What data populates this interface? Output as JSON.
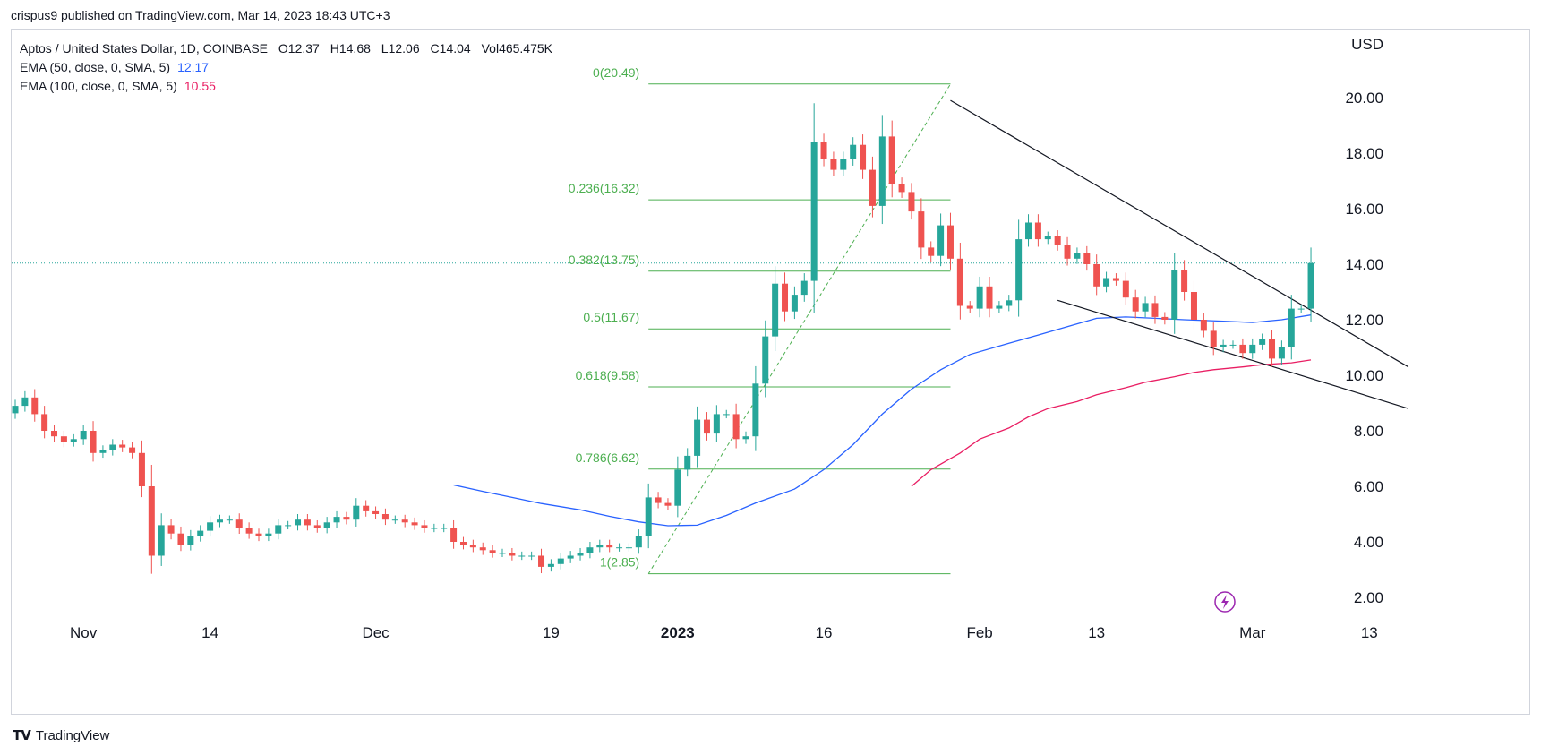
{
  "header": {
    "published": "crispus9 published on TradingView.com, Mar 14, 2023 18:43 UTC+3"
  },
  "legend": {
    "symbol": "Aptos / United States Dollar, 1D, COINBASE",
    "ohlc": [
      {
        "label": "O",
        "value": "12.37"
      },
      {
        "label": "H",
        "value": "14.68"
      },
      {
        "label": "L",
        "value": "12.06"
      },
      {
        "label": "C",
        "value": "14.04"
      },
      {
        "label": "Vol",
        "value": "465.475K"
      }
    ],
    "ema50": {
      "label": "EMA (50, close, 0, SMA, 5)",
      "value": "12.17"
    },
    "ema100": {
      "label": "EMA (100, close, 0, SMA, 5)",
      "value": "10.55"
    }
  },
  "footer": {
    "brand": "TradingView"
  },
  "colors": {
    "up": "#26a69a",
    "down": "#ef5350",
    "ema50": "#2962ff",
    "ema100": "#e91e63",
    "fib": "#4caf50",
    "trend": "#131722",
    "accent": "#9c27b0"
  },
  "chart_data": {
    "type": "candlestick",
    "title": "Aptos / United States Dollar, 1D, COINBASE",
    "y_axis": {
      "unit": "USD",
      "ylim": [
        1.0,
        22.0
      ],
      "ticks": [
        "2.00",
        "4.00",
        "6.00",
        "8.00",
        "10.00",
        "12.00",
        "14.00",
        "16.00",
        "18.00",
        "20.00"
      ],
      "side": "right"
    },
    "x_axis": {
      "tick_labels": [
        {
          "label": "Nov",
          "date": "2022-11-01"
        },
        {
          "label": "14",
          "date": "2022-11-14"
        },
        {
          "label": "Dec",
          "date": "2022-12-01"
        },
        {
          "label": "19",
          "date": "2022-12-19"
        },
        {
          "label": "2023",
          "date": "2023-01-01"
        },
        {
          "label": "16",
          "date": "2023-01-16"
        },
        {
          "label": "Feb",
          "date": "2023-02-01"
        },
        {
          "label": "13",
          "date": "2023-02-13"
        },
        {
          "label": "Mar",
          "date": "2023-03-01"
        },
        {
          "label": "13",
          "date": "2023-03-13"
        }
      ]
    },
    "first_date": "2022-10-25",
    "closes": [
      8.9,
      9.2,
      8.6,
      8.0,
      7.8,
      7.6,
      7.7,
      8.0,
      7.2,
      7.3,
      7.5,
      7.4,
      7.2,
      6.0,
      3.5,
      4.6,
      4.3,
      3.9,
      4.2,
      4.4,
      4.7,
      4.8,
      4.8,
      4.5,
      4.3,
      4.2,
      4.3,
      4.6,
      4.6,
      4.8,
      4.6,
      4.5,
      4.7,
      4.9,
      4.8,
      5.3,
      5.1,
      5.0,
      4.8,
      4.8,
      4.7,
      4.6,
      4.5,
      4.5,
      4.5,
      4.0,
      3.9,
      3.8,
      3.7,
      3.6,
      3.6,
      3.5,
      3.5,
      3.5,
      3.1,
      3.2,
      3.4,
      3.5,
      3.6,
      3.8,
      3.9,
      3.8,
      3.8,
      3.8,
      4.2,
      5.6,
      5.4,
      5.3,
      6.6,
      7.1,
      8.4,
      7.9,
      8.6,
      8.6,
      7.7,
      7.8,
      9.7,
      11.4,
      13.3,
      12.3,
      12.9,
      13.4,
      18.4,
      17.8,
      17.4,
      17.8,
      18.3,
      17.4,
      16.1,
      18.6,
      16.9,
      16.6,
      15.9,
      14.6,
      14.3,
      15.4,
      14.2,
      12.5,
      12.4,
      13.2,
      12.4,
      12.5,
      12.7,
      14.9,
      15.5,
      14.9,
      15.0,
      14.7,
      14.2,
      14.4,
      14.0,
      13.2,
      13.5,
      13.4,
      12.8,
      12.3,
      12.6,
      12.1,
      12.0,
      13.8,
      13.0,
      12.0,
      11.6,
      11.0,
      11.1,
      11.1,
      10.8,
      11.1,
      11.3,
      10.6,
      11.0,
      12.4,
      12.4,
      14.04
    ],
    "opens_note": "each candle opens at previous close",
    "ema50": {
      "start_date": "2022-12-09",
      "values": [
        6.05,
        5.82,
        5.6,
        5.38,
        5.15,
        4.92,
        4.72,
        4.58,
        4.6,
        4.95,
        5.4,
        5.9,
        6.6,
        7.5,
        8.6,
        9.5,
        10.2,
        10.75,
        11.15,
        11.45,
        11.75,
        12.05,
        12.1,
        12.05,
        12.0,
        11.95,
        11.9,
        12.0,
        12.17
      ]
    },
    "ema100": {
      "start_date": "2023-01-25",
      "values": [
        6.0,
        6.6,
        7.2,
        7.7,
        8.1,
        8.5,
        8.8,
        9.05,
        9.3,
        9.55,
        9.75,
        9.95,
        10.1,
        10.2,
        10.3,
        10.38,
        10.45,
        10.55
      ]
    },
    "fibonacci": [
      {
        "level": "0",
        "price": 20.49,
        "label": "0(20.49)"
      },
      {
        "level": "0.236",
        "price": 16.32,
        "label": "0.236(16.32)"
      },
      {
        "level": "0.382",
        "price": 13.75,
        "label": "0.382(13.75)"
      },
      {
        "level": "0.5",
        "price": 11.67,
        "label": "0.5(11.67)"
      },
      {
        "level": "0.618",
        "price": 9.58,
        "label": "0.618(9.58)"
      },
      {
        "level": "0.786",
        "price": 6.62,
        "label": "0.786(6.62)"
      },
      {
        "level": "1",
        "price": 2.85,
        "label": "1(2.85)"
      }
    ],
    "fib_range": {
      "from_date": "2022-12-29",
      "to_date": "2023-01-29"
    },
    "trendlines": [
      {
        "name": "upper",
        "from": {
          "date": "2023-01-29",
          "price": 19.9
        },
        "to": {
          "date": "2023-03-17",
          "price": 10.3
        }
      },
      {
        "name": "lower",
        "from": {
          "date": "2023-02-09",
          "price": 12.7
        },
        "to": {
          "date": "2023-03-17",
          "price": 8.8
        }
      }
    ],
    "current_price": 14.04
  }
}
